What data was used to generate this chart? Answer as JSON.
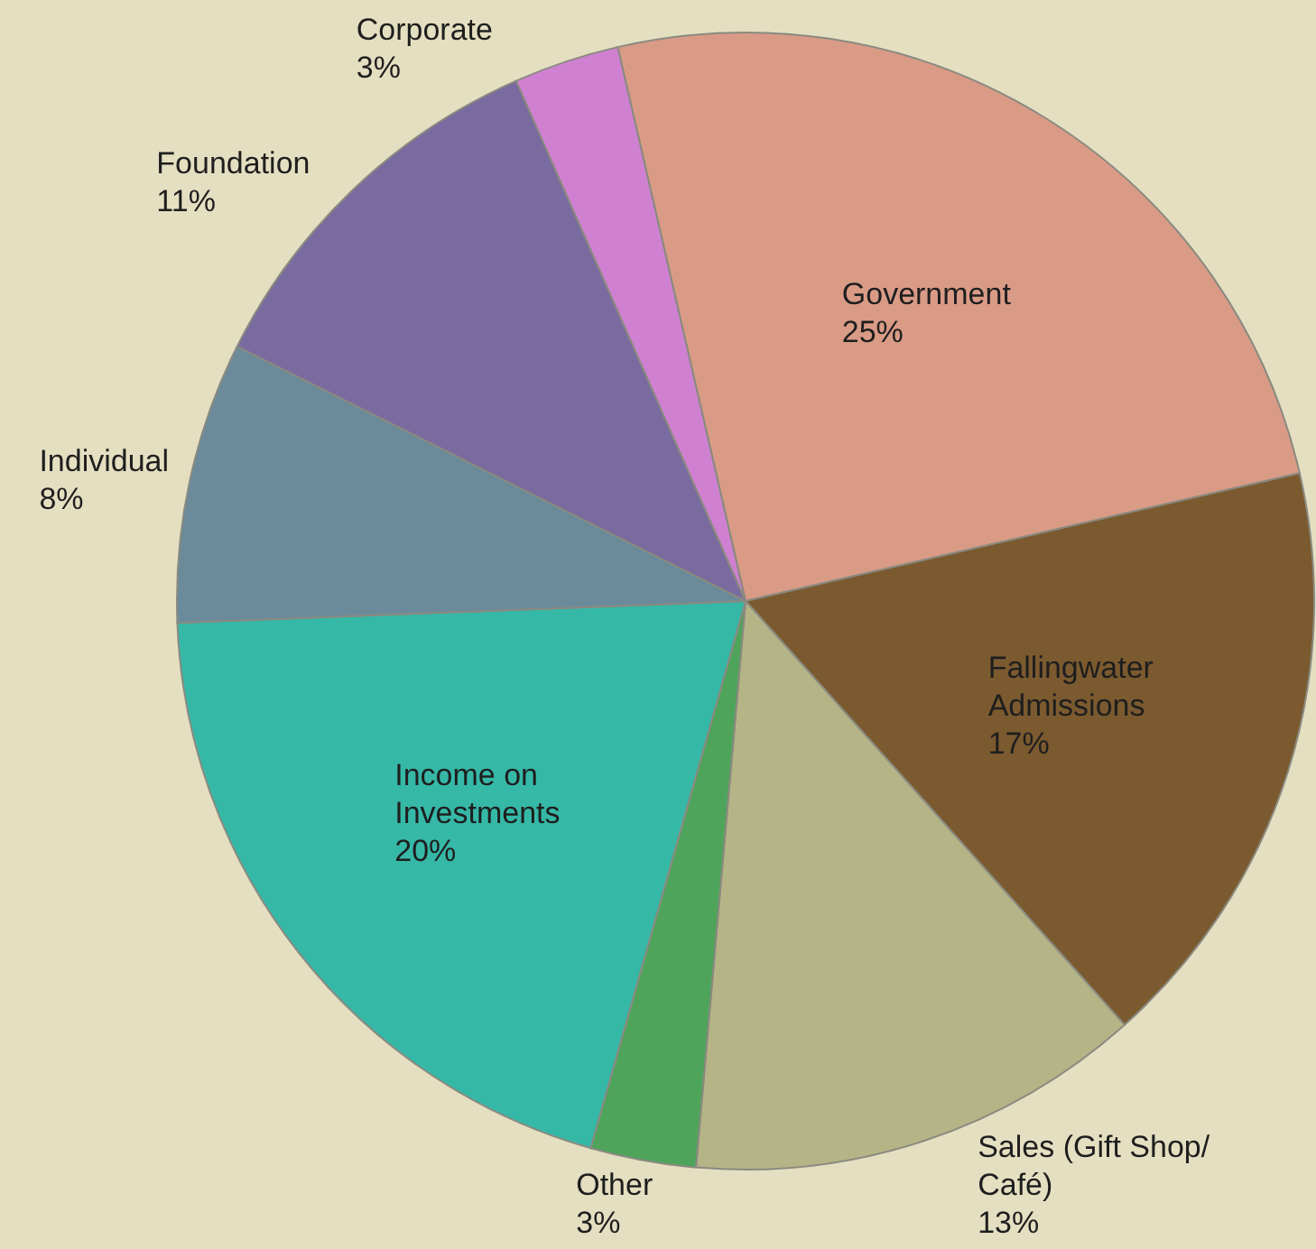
{
  "chart_data": {
    "type": "pie",
    "categories": [
      "Government",
      "Fallingwater Admissions",
      "Sales (Gift Shop/ Café)",
      "Other",
      "Income on Investments",
      "Individual",
      "Foundation",
      "Corporate"
    ],
    "values": [
      25,
      17,
      13,
      3,
      20,
      8,
      11,
      3
    ],
    "value_labels": [
      "25%",
      "17%",
      "13%",
      "3%",
      "20%",
      "8%",
      "11%",
      "3%"
    ],
    "colors": [
      "#d99b86",
      "#7b5a2f",
      "#b5b487",
      "#4fa45b",
      "#36b8a7",
      "#6b8b9b",
      "#796b9f",
      "#d080d1"
    ]
  }
}
